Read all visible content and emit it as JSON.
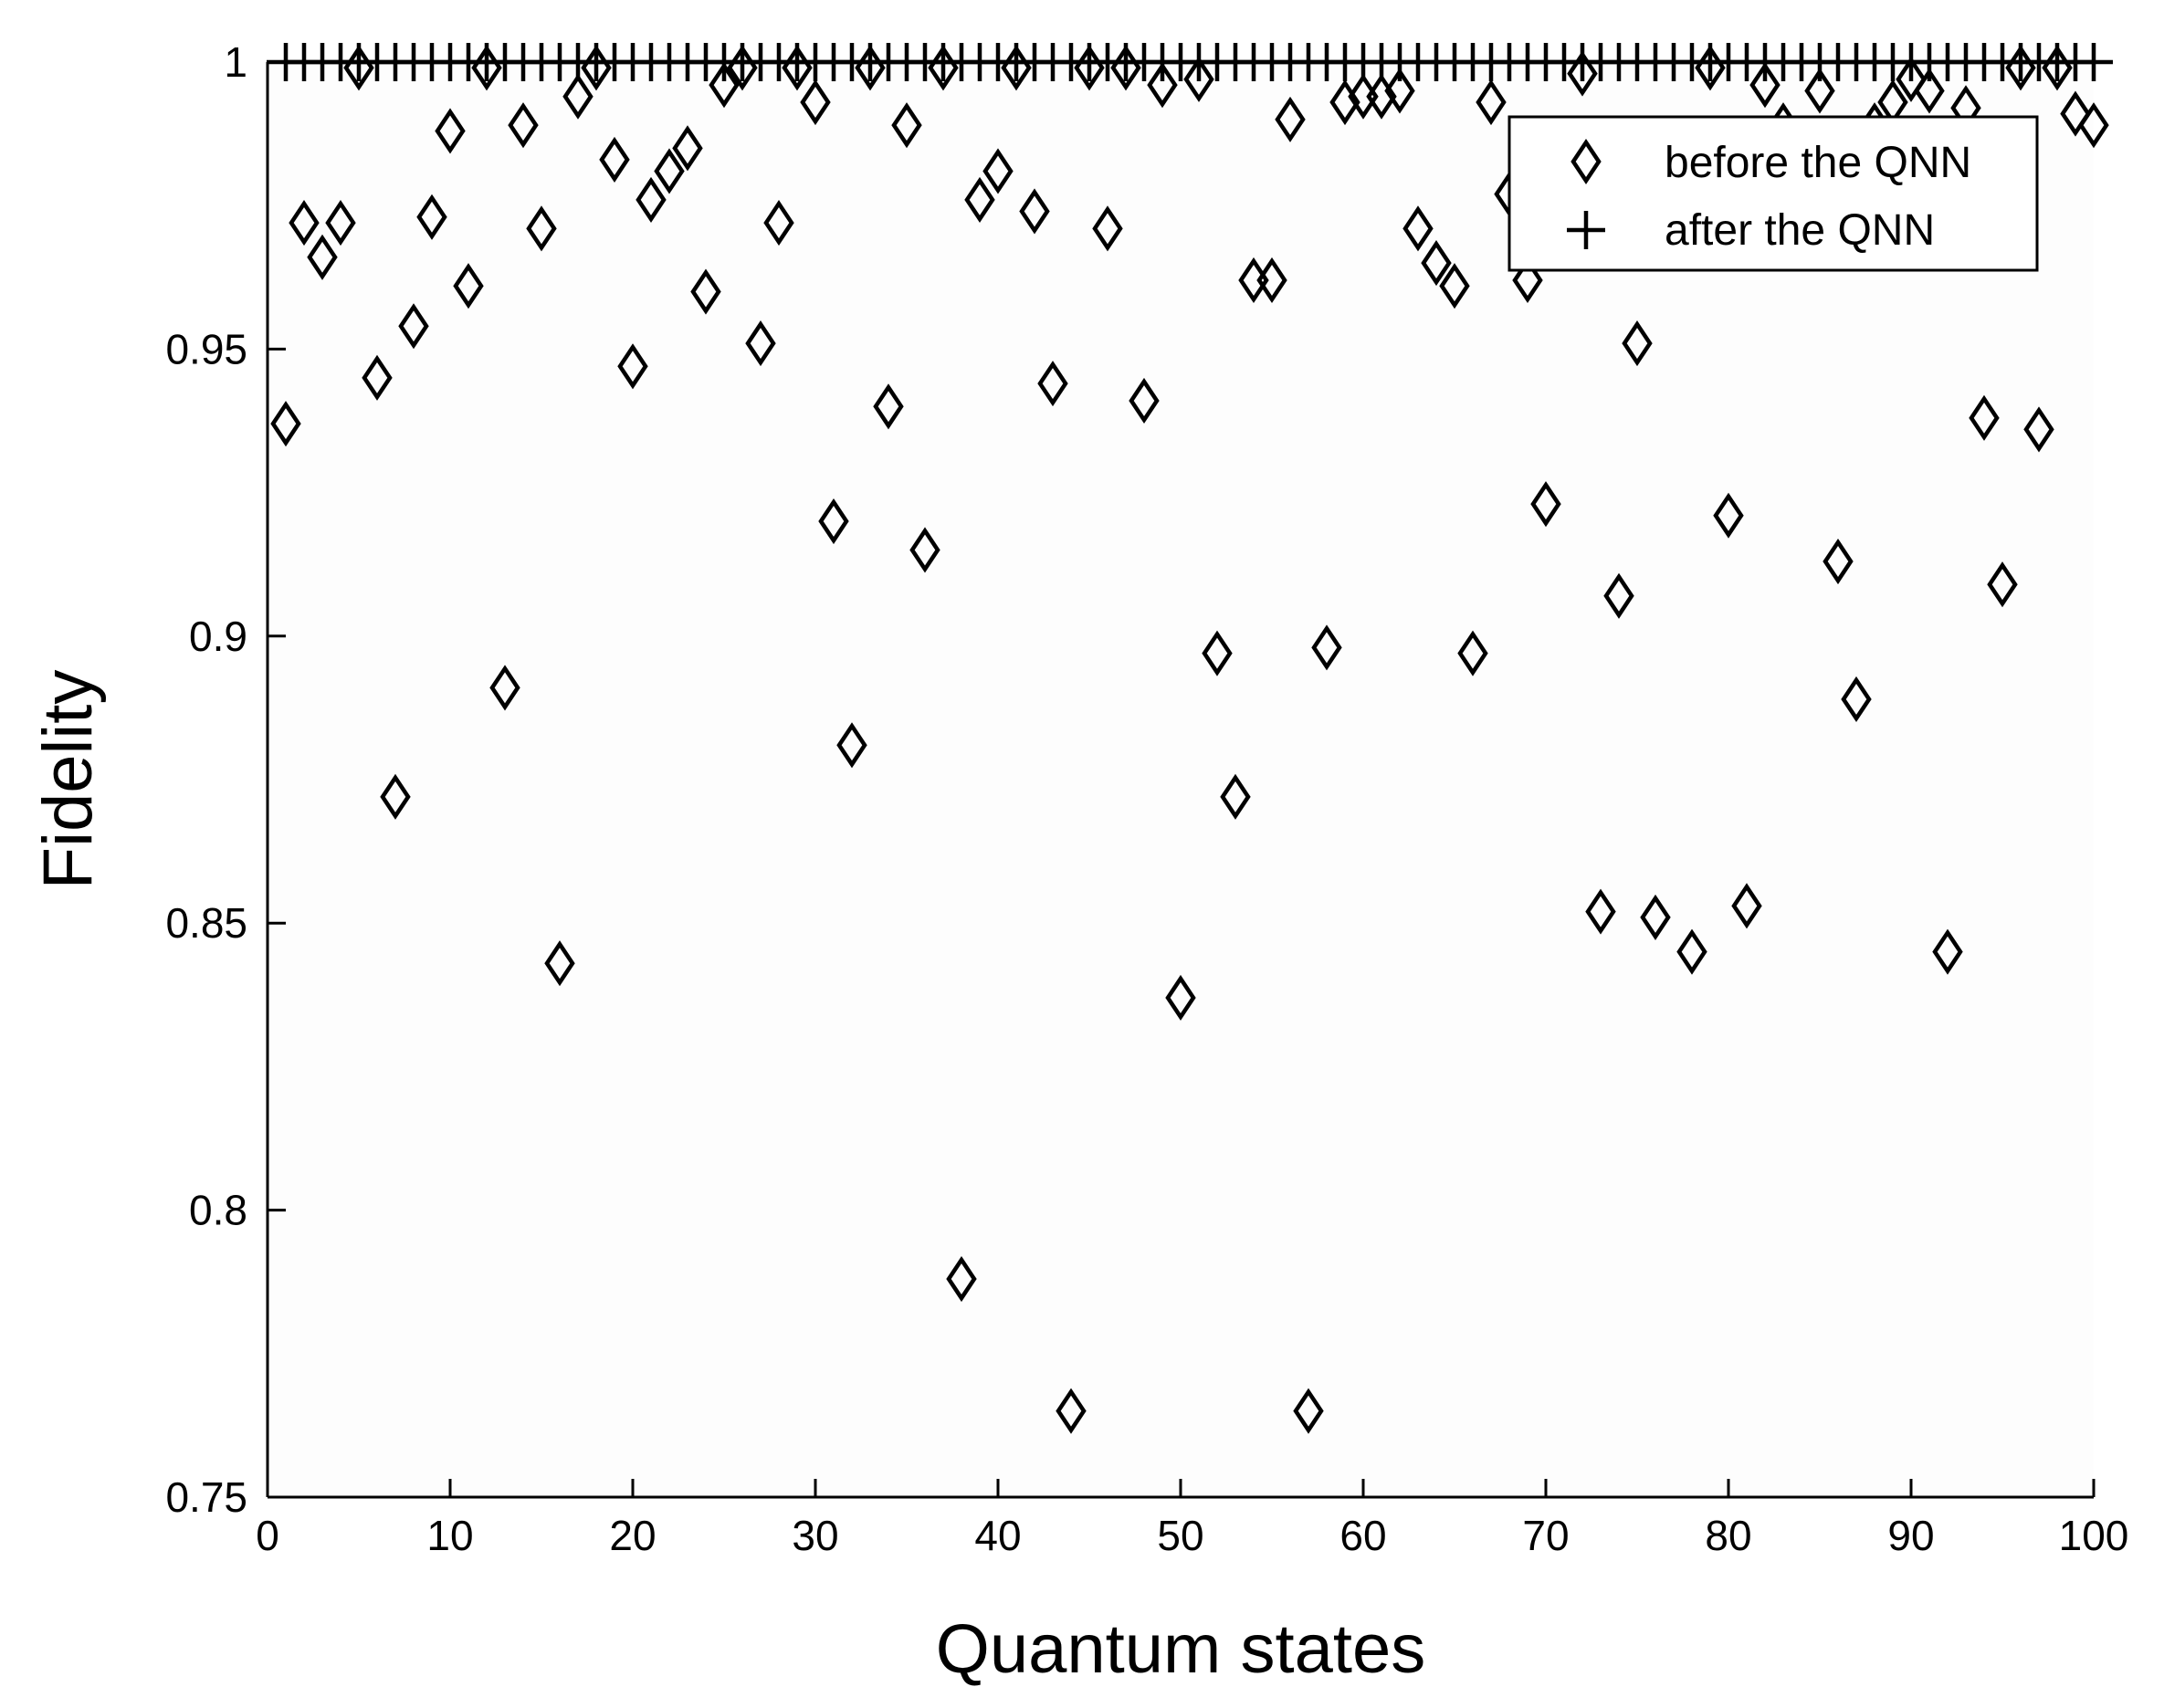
{
  "chart_data": {
    "type": "scatter",
    "xlabel": "Quantum states",
    "ylabel": "Fidelity",
    "xlim": [
      0,
      100
    ],
    "ylim": [
      0.75,
      1.0
    ],
    "x_ticks": [
      0,
      10,
      20,
      30,
      40,
      50,
      60,
      70,
      80,
      90,
      100
    ],
    "x_tick_labels": [
      "0",
      "10",
      "20",
      "30",
      "40",
      "50",
      "60",
      "70",
      "80",
      "90",
      "100"
    ],
    "y_ticks": [
      0.75,
      0.8,
      0.85,
      0.9,
      0.95,
      1.0
    ],
    "y_tick_labels": [
      "0.75",
      "0.8",
      "0.85",
      "0.9",
      "0.95",
      "1"
    ],
    "grid": false,
    "legend_position": "top-right",
    "series": [
      {
        "name": "before the QNN",
        "marker": "diamond",
        "color": "#000000",
        "x": [
          1,
          2,
          3,
          4,
          5,
          6,
          7,
          8,
          9,
          10,
          11,
          12,
          13,
          14,
          15,
          16,
          17,
          18,
          19,
          20,
          21,
          22,
          23,
          24,
          25,
          26,
          27,
          28,
          29,
          30,
          31,
          32,
          33,
          34,
          35,
          36,
          37,
          38,
          39,
          40,
          41,
          42,
          43,
          44,
          45,
          46,
          47,
          48,
          49,
          50,
          51,
          52,
          53,
          54,
          55,
          56,
          57,
          58,
          59,
          60,
          61,
          62,
          63,
          64,
          65,
          66,
          67,
          68,
          69,
          70,
          71,
          72,
          73,
          74,
          75,
          76,
          77,
          78,
          79,
          80,
          81,
          82,
          83,
          84,
          85,
          86,
          87,
          88,
          89,
          90,
          91,
          92,
          93,
          94,
          95,
          96,
          97,
          98,
          99,
          100
        ],
        "y": [
          0.937,
          0.972,
          0.966,
          0.972,
          0.999,
          0.945,
          0.872,
          0.954,
          0.973,
          0.988,
          0.961,
          0.999,
          0.891,
          0.989,
          0.971,
          0.843,
          0.994,
          0.999,
          0.983,
          0.947,
          0.976,
          0.981,
          0.985,
          0.96,
          0.996,
          0.999,
          0.951,
          0.972,
          0.999,
          0.993,
          0.92,
          0.881,
          0.999,
          0.94,
          0.989,
          0.915,
          0.999,
          0.788,
          0.976,
          0.981,
          0.999,
          0.974,
          0.944,
          0.765,
          0.999,
          0.971,
          0.999,
          0.941,
          0.996,
          0.837,
          0.997,
          0.897,
          0.872,
          0.962,
          0.962,
          0.99,
          0.765,
          0.898,
          0.993,
          0.994,
          0.994,
          0.995,
          0.971,
          0.965,
          0.961,
          0.897,
          0.993,
          0.977,
          0.962,
          0.923,
          0.985,
          0.998,
          0.852,
          0.907,
          0.951,
          0.851,
          0.983,
          0.845,
          0.999,
          0.921,
          0.853,
          0.996,
          0.989,
          0.985,
          0.995,
          0.913,
          0.889,
          0.989,
          0.993,
          0.997,
          0.995,
          0.845,
          0.992,
          0.938,
          0.909,
          0.999,
          0.936,
          0.999,
          0.991,
          0.989
        ]
      },
      {
        "name": "after the QNN",
        "marker": "plus",
        "color": "#000000",
        "x": [
          1,
          2,
          3,
          4,
          5,
          6,
          7,
          8,
          9,
          10,
          11,
          12,
          13,
          14,
          15,
          16,
          17,
          18,
          19,
          20,
          21,
          22,
          23,
          24,
          25,
          26,
          27,
          28,
          29,
          30,
          31,
          32,
          33,
          34,
          35,
          36,
          37,
          38,
          39,
          40,
          41,
          42,
          43,
          44,
          45,
          46,
          47,
          48,
          49,
          50,
          51,
          52,
          53,
          54,
          55,
          56,
          57,
          58,
          59,
          60,
          61,
          62,
          63,
          64,
          65,
          66,
          67,
          68,
          69,
          70,
          71,
          72,
          73,
          74,
          75,
          76,
          77,
          78,
          79,
          80,
          81,
          82,
          83,
          84,
          85,
          86,
          87,
          88,
          89,
          90,
          91,
          92,
          93,
          94,
          95,
          96,
          97,
          98,
          99,
          100
        ],
        "y": [
          1,
          1,
          1,
          1,
          1,
          1,
          1,
          1,
          1,
          1,
          1,
          1,
          1,
          1,
          1,
          1,
          1,
          1,
          1,
          1,
          1,
          1,
          1,
          1,
          1,
          1,
          1,
          1,
          1,
          1,
          1,
          1,
          1,
          1,
          1,
          1,
          1,
          1,
          1,
          1,
          1,
          1,
          1,
          1,
          1,
          1,
          1,
          1,
          1,
          1,
          1,
          1,
          1,
          1,
          1,
          1,
          1,
          1,
          1,
          1,
          1,
          1,
          1,
          1,
          1,
          1,
          1,
          1,
          1,
          1,
          1,
          1,
          1,
          1,
          1,
          1,
          1,
          1,
          1,
          1,
          1,
          1,
          1,
          1,
          1,
          1,
          1,
          1,
          1,
          1,
          1,
          1,
          1,
          1,
          1,
          1,
          1,
          1,
          1,
          1
        ]
      }
    ]
  }
}
